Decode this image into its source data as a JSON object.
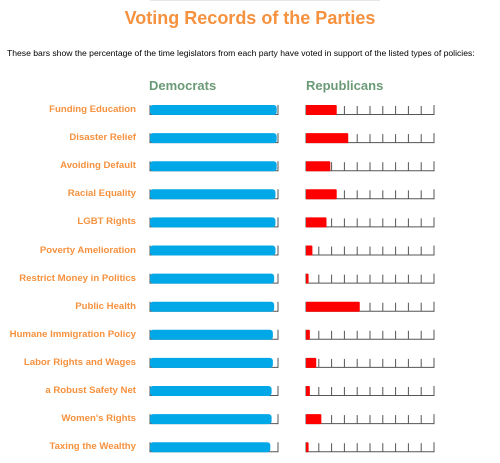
{
  "chart_data": {
    "type": "bar",
    "title": "Voting Records of the Parties",
    "subtitle": "These bars show the percentage of the time legislators from each party have voted in support of the listed types of policies:",
    "xlim": [
      0,
      100
    ],
    "categories": [
      "Funding Education",
      "Disaster Relief",
      "Avoiding Default",
      "Racial Equality",
      "LGBT Rights",
      "Poverty Amelioration",
      "Restrict Money in Politics",
      "Public Health",
      "Humane Immigration Policy",
      "Labor Rights and Wages",
      "a Robust Safety Net",
      "Women's Rights",
      "Taxing the Wealthy"
    ],
    "series": [
      {
        "name": "Democrats",
        "color": "#00a8e8",
        "values": [
          99,
          99,
          99,
          98,
          98,
          98,
          97,
          97,
          96,
          96,
          95,
          95,
          94
        ]
      },
      {
        "name": "Republicans",
        "color": "#ff0000",
        "values": [
          24,
          33,
          19,
          24,
          16,
          5,
          2,
          42,
          3,
          8,
          3,
          12,
          2
        ]
      }
    ]
  }
}
